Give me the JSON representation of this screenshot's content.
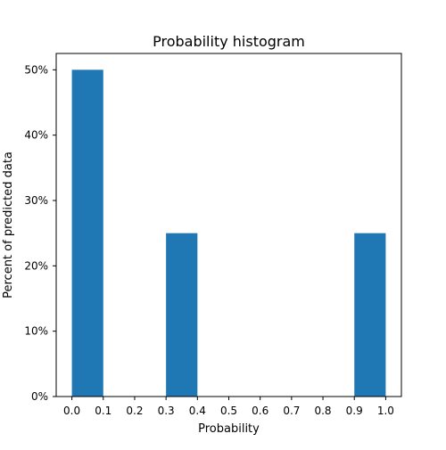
{
  "chart_data": {
    "type": "bar",
    "title": "Probability histogram",
    "xlabel": "Probability",
    "ylabel": "Percent of predicted data",
    "bins": [
      {
        "start": 0.0,
        "end": 0.1,
        "value": 50
      },
      {
        "start": 0.1,
        "end": 0.2,
        "value": 0
      },
      {
        "start": 0.2,
        "end": 0.3,
        "value": 0
      },
      {
        "start": 0.3,
        "end": 0.4,
        "value": 25
      },
      {
        "start": 0.4,
        "end": 0.5,
        "value": 0
      },
      {
        "start": 0.5,
        "end": 0.6,
        "value": 0
      },
      {
        "start": 0.6,
        "end": 0.7,
        "value": 0
      },
      {
        "start": 0.7,
        "end": 0.8,
        "value": 0
      },
      {
        "start": 0.8,
        "end": 0.9,
        "value": 0
      },
      {
        "start": 0.9,
        "end": 1.0,
        "value": 25
      }
    ],
    "xlim": [
      -0.05,
      1.05
    ],
    "ylim": [
      0,
      52.5
    ],
    "xticks": [
      0.0,
      0.1,
      0.2,
      0.3,
      0.4,
      0.5,
      0.6,
      0.7,
      0.8,
      0.9,
      1.0
    ],
    "xtick_labels": [
      "0.0",
      "0.1",
      "0.2",
      "0.3",
      "0.4",
      "0.5",
      "0.6",
      "0.7",
      "0.8",
      "0.9",
      "1.0"
    ],
    "yticks": [
      0,
      10,
      20,
      30,
      40,
      50
    ],
    "ytick_labels": [
      "0%",
      "10%",
      "20%",
      "30%",
      "40%",
      "50%"
    ],
    "bar_color": "#1f77b4",
    "grid": false,
    "legend": "none"
  }
}
